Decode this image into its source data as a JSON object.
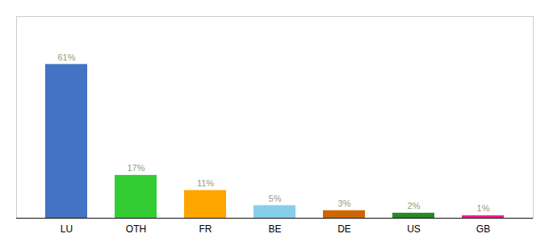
{
  "chart_data": {
    "type": "bar",
    "categories": [
      "LU",
      "OTH",
      "FR",
      "BE",
      "DE",
      "US",
      "GB"
    ],
    "values": [
      61,
      17,
      11,
      5,
      3,
      2,
      1
    ],
    "value_labels": [
      "61%",
      "17%",
      "11%",
      "5%",
      "3%",
      "2%",
      "1%"
    ],
    "colors": [
      "#4472C4",
      "#33CC33",
      "#FFA500",
      "#87CEEB",
      "#CC6600",
      "#228B22",
      "#FF1493"
    ],
    "ylim": [
      0,
      80
    ],
    "grid": false,
    "data_labels": true,
    "tick_labels": "x"
  }
}
